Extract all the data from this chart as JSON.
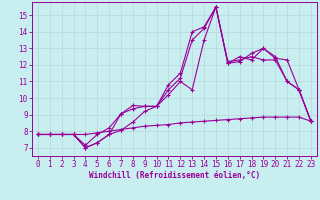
{
  "bg_color": "#c8eef0",
  "line_color": "#990099",
  "grid_color": "#b8d8dc",
  "xlabel": "Windchill (Refroidissement éolien,°C)",
  "xlim": [
    -0.5,
    23.5
  ],
  "ylim": [
    6.5,
    15.8
  ],
  "xticks": [
    0,
    1,
    2,
    3,
    4,
    5,
    6,
    7,
    8,
    9,
    10,
    11,
    12,
    13,
    14,
    15,
    16,
    17,
    18,
    19,
    20,
    21,
    22,
    23
  ],
  "yticks": [
    7,
    8,
    9,
    10,
    11,
    12,
    13,
    14,
    15
  ],
  "line1_y": [
    7.8,
    7.8,
    7.8,
    7.8,
    7.0,
    7.3,
    7.8,
    8.05,
    8.55,
    9.2,
    9.5,
    10.2,
    11.0,
    10.5,
    13.5,
    15.5,
    12.1,
    12.2,
    12.7,
    13.0,
    12.4,
    12.3,
    10.5,
    8.6
  ],
  "line2_y": [
    7.8,
    7.8,
    7.8,
    7.8,
    7.0,
    7.3,
    7.8,
    9.05,
    9.55,
    9.5,
    9.5,
    10.8,
    11.5,
    14.0,
    14.3,
    15.5,
    12.1,
    12.5,
    12.3,
    13.0,
    12.5,
    11.0,
    10.5,
    8.6
  ],
  "line3_y": [
    7.8,
    7.8,
    7.8,
    7.8,
    7.15,
    7.8,
    8.2,
    9.05,
    9.35,
    9.5,
    9.5,
    10.5,
    11.2,
    13.5,
    14.2,
    15.5,
    12.2,
    12.3,
    12.5,
    12.3,
    12.3,
    11.0,
    10.5,
    8.6
  ],
  "line4_y": [
    7.8,
    7.8,
    7.8,
    7.8,
    7.8,
    7.9,
    8.0,
    8.1,
    8.2,
    8.3,
    8.35,
    8.4,
    8.5,
    8.55,
    8.6,
    8.65,
    8.7,
    8.75,
    8.8,
    8.85,
    8.85,
    8.85,
    8.85,
    8.6
  ]
}
